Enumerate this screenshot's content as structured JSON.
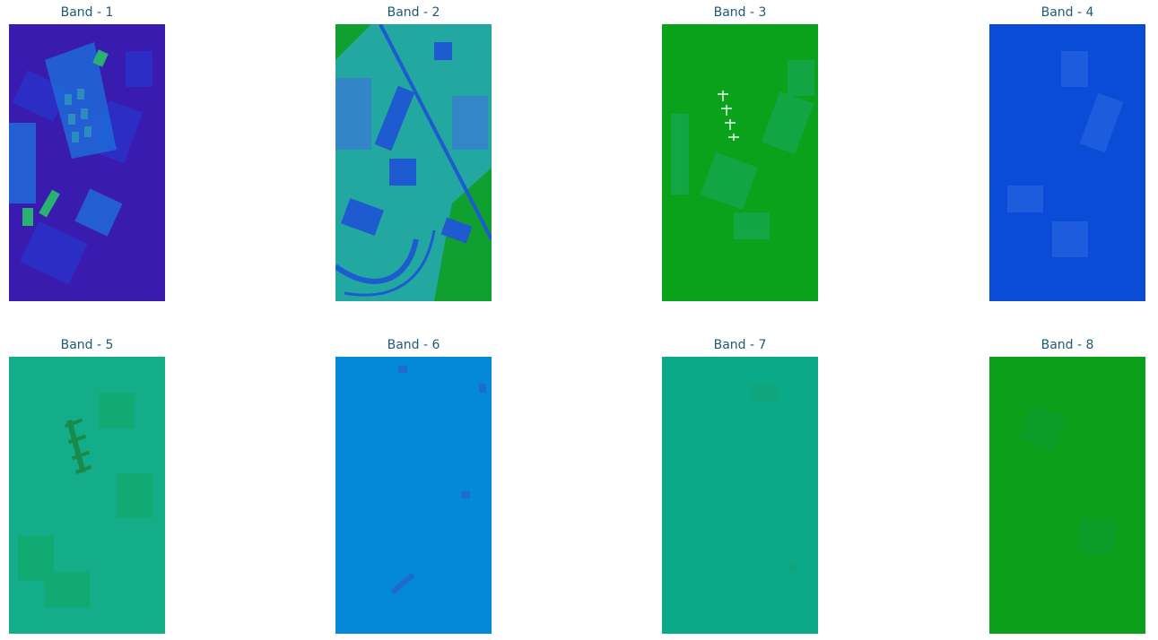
{
  "figure": {
    "panels": [
      {
        "title": "Band - 1",
        "base_color": "#3a1bb0",
        "image_desc": "band-1-image"
      },
      {
        "title": "Band - 2",
        "base_color": "#22a8a0",
        "image_desc": "band-2-image"
      },
      {
        "title": "Band - 3",
        "base_color": "#0aa21a",
        "image_desc": "band-3-image"
      },
      {
        "title": "Band - 4",
        "base_color": "#0a4cd8",
        "image_desc": "band-4-image"
      },
      {
        "title": "Band - 5",
        "base_color": "#14ad8a",
        "image_desc": "band-5-image"
      },
      {
        "title": "Band - 6",
        "base_color": "#0488d8",
        "image_desc": "band-6-image"
      },
      {
        "title": "Band - 7",
        "base_color": "#0aaa88",
        "image_desc": "band-7-image"
      },
      {
        "title": "Band - 8",
        "base_color": "#0aa01a",
        "image_desc": "band-8-image"
      }
    ]
  }
}
